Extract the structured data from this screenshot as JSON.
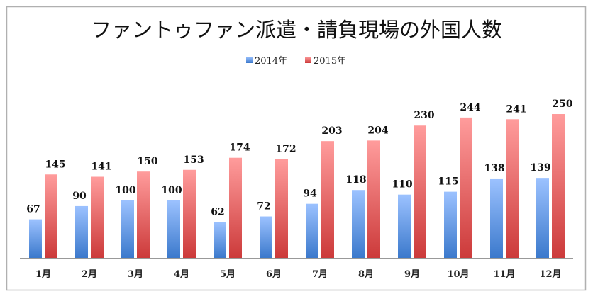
{
  "chart_data": {
    "type": "bar",
    "title": "ファントゥファン派遣・請負現場の外国人数",
    "xlabel": "",
    "ylabel": "",
    "ylim": [
      0,
      250
    ],
    "grid": false,
    "legend_position": "top-center",
    "categories": [
      "1月",
      "2月",
      "3月",
      "4月",
      "5月",
      "6月",
      "7月",
      "8月",
      "9月",
      "10月",
      "11月",
      "12月"
    ],
    "series": [
      {
        "name": "2014年",
        "color": "#4a86d8",
        "values": [
          67,
          90,
          100,
          100,
          62,
          72,
          94,
          118,
          110,
          115,
          138,
          139
        ]
      },
      {
        "name": "2015年",
        "color": "#d84a4a",
        "values": [
          145,
          141,
          150,
          153,
          174,
          172,
          203,
          204,
          230,
          244,
          241,
          250
        ]
      }
    ]
  }
}
